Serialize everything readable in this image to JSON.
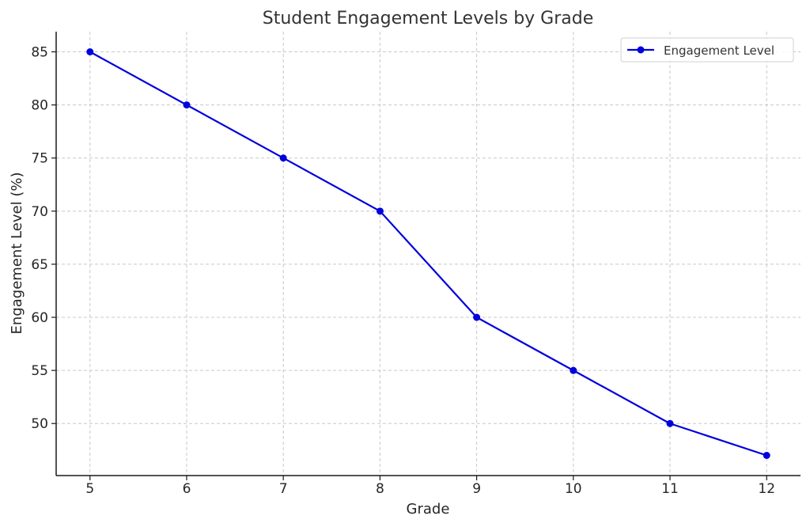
{
  "chart_data": {
    "type": "line",
    "title": "Student Engagement Levels by Grade",
    "xlabel": "Grade",
    "ylabel": "Engagement Level (%)",
    "x": [
      5,
      6,
      7,
      8,
      9,
      10,
      11,
      12
    ],
    "series": [
      {
        "name": "Engagement Level",
        "values": [
          85,
          80,
          75,
          70,
          60,
          55,
          50,
          47
        ],
        "color": "#0000dd",
        "marker": "circle"
      }
    ],
    "xlim": [
      4.65,
      12.35
    ],
    "ylim": [
      45.1,
      86.9
    ],
    "xticks": [
      "5",
      "6",
      "7",
      "8",
      "9",
      "10",
      "11",
      "12"
    ],
    "yticks": [
      "50",
      "55",
      "60",
      "65",
      "70",
      "75",
      "80",
      "85"
    ],
    "grid": true,
    "legend_position": "top-right"
  }
}
